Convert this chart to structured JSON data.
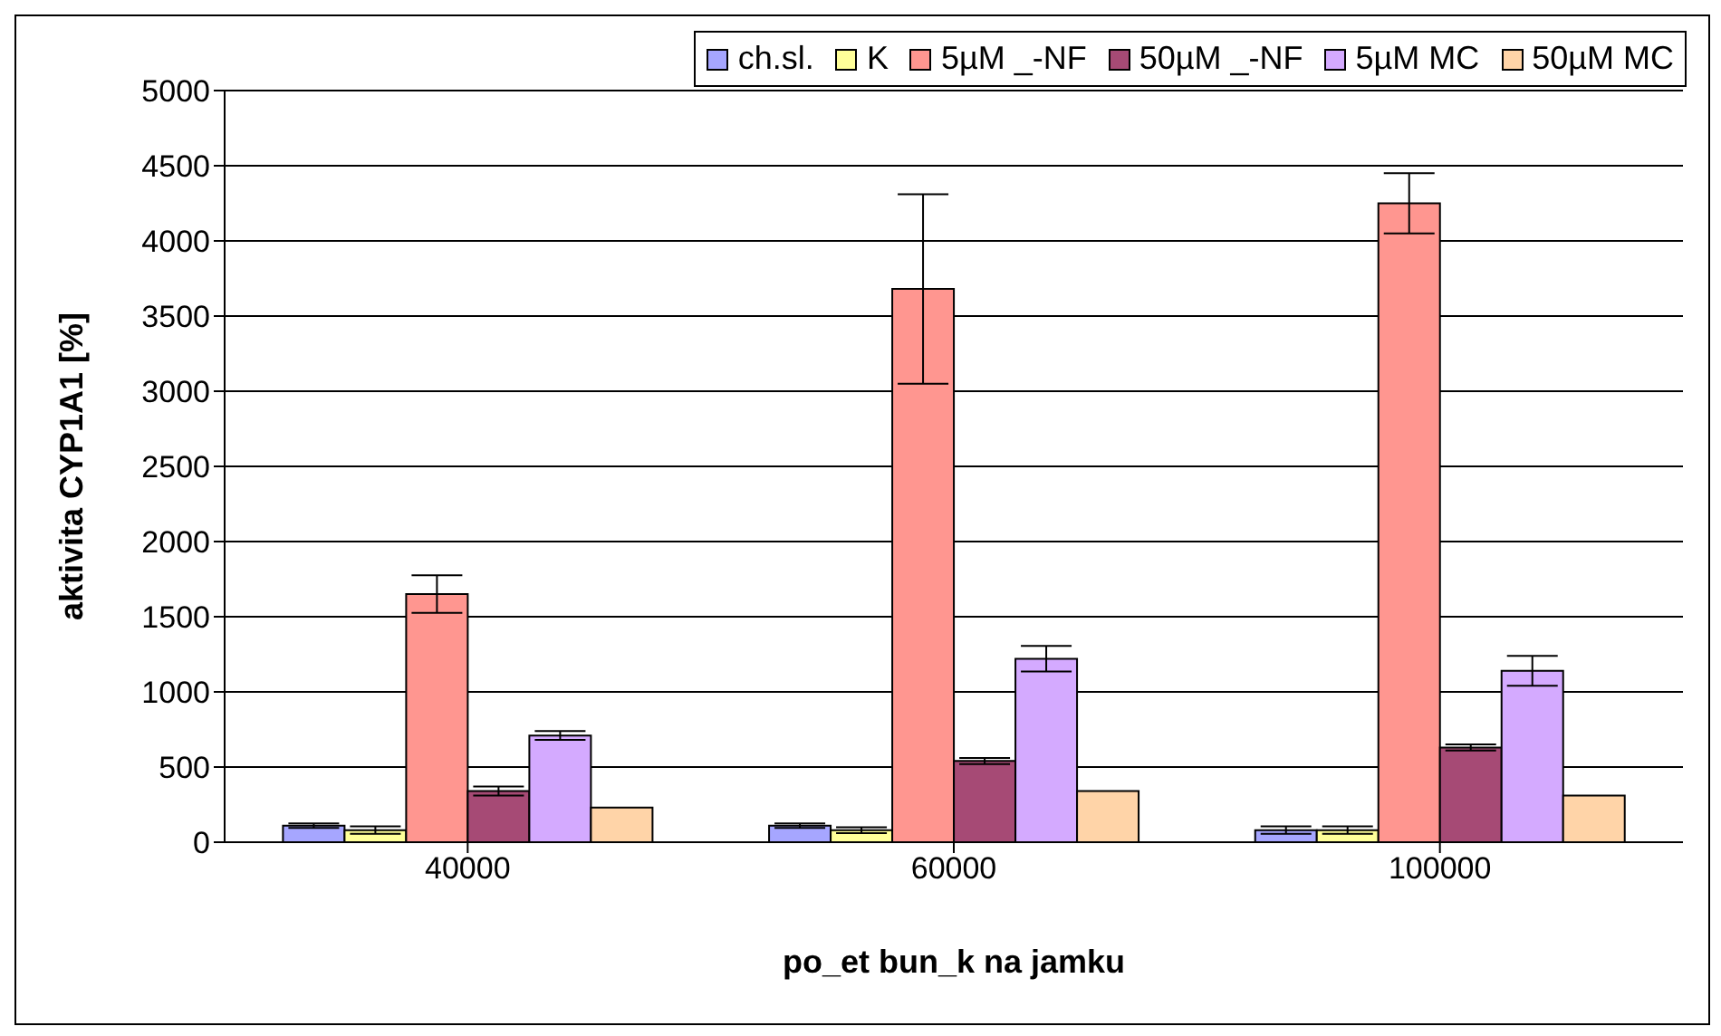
{
  "chart_data": {
    "type": "bar",
    "xlabel": "po_et bun_k na jamku",
    "ylabel": "aktivita CYP1A1 [%]",
    "categories": [
      "40000",
      "60000",
      "100000"
    ],
    "series": [
      {
        "name": "ch.sl.",
        "color": "#a6a6ff",
        "values": [
          110,
          110,
          80
        ],
        "errors": [
          15,
          15,
          25
        ]
      },
      {
        "name": "K",
        "color": "#ffff99",
        "values": [
          80,
          80,
          80
        ],
        "errors": [
          25,
          20,
          25
        ]
      },
      {
        "name": "5µM _-NF",
        "color": "#ff9690",
        "values": [
          1650,
          3680,
          4250
        ],
        "errors": [
          125,
          630,
          200
        ]
      },
      {
        "name": "50µM _-NF",
        "color": "#a64a75",
        "values": [
          340,
          540,
          630
        ],
        "errors": [
          30,
          20,
          20
        ]
      },
      {
        "name": "5µM MC",
        "color": "#d4aaff",
        "values": [
          710,
          1220,
          1140
        ],
        "errors": [
          30,
          85,
          100
        ]
      },
      {
        "name": "50µM MC",
        "color": "#ffd4a8",
        "values": [
          230,
          340,
          310
        ]
      }
    ],
    "ylim": [
      0,
      5000
    ],
    "yticks": [
      0,
      500,
      1000,
      1500,
      2000,
      2500,
      3000,
      3500,
      4000,
      4500,
      5000
    ],
    "grid": "y",
    "legend": "top right"
  }
}
